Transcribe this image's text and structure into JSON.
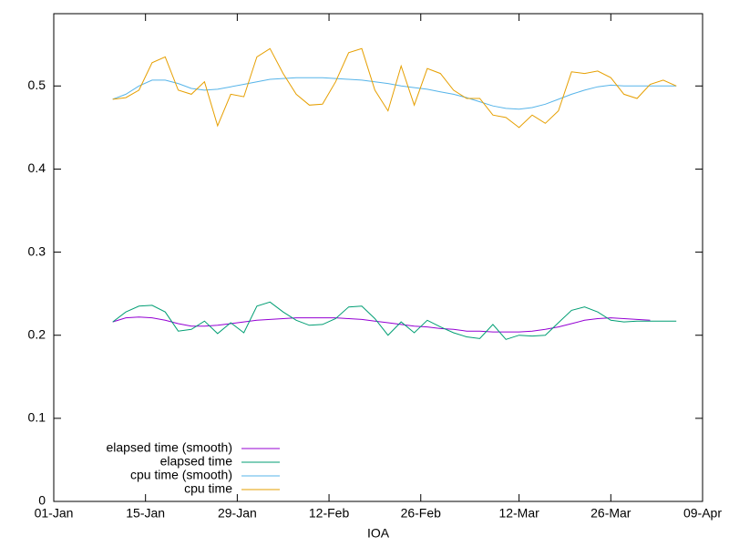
{
  "chart_data": {
    "type": "line",
    "xlabel": "IOA",
    "x": [
      "01-10",
      "01-12",
      "01-14",
      "01-16",
      "01-18",
      "01-20",
      "01-22",
      "01-24",
      "01-26",
      "01-28",
      "01-30",
      "02-01",
      "02-03",
      "02-05",
      "02-07",
      "02-09",
      "02-11",
      "02-13",
      "02-15",
      "02-17",
      "02-19",
      "02-21",
      "02-23",
      "02-25",
      "02-27",
      "02-29",
      "03-02",
      "03-04",
      "03-06",
      "03-08",
      "03-10",
      "03-12",
      "03-14",
      "03-16",
      "03-18",
      "03-20",
      "03-22",
      "03-24",
      "03-26",
      "03-28",
      "03-30",
      "04-01",
      "04-03",
      "04-05"
    ],
    "series": [
      {
        "name": "elapsed time (smooth)",
        "color": "#9400d3",
        "values": [
          0.216,
          0.221,
          0.222,
          0.221,
          0.218,
          0.214,
          0.211,
          0.211,
          0.212,
          0.214,
          0.216,
          0.218,
          0.219,
          0.22,
          0.221,
          0.221,
          0.221,
          0.221,
          0.22,
          0.219,
          0.217,
          0.215,
          0.213,
          0.211,
          0.21,
          0.208,
          0.207,
          0.205,
          0.205,
          0.204,
          0.204,
          0.204,
          0.205,
          0.207,
          0.21,
          0.214,
          0.218,
          0.22,
          0.221,
          0.22,
          0.219,
          0.218,
          null,
          null
        ]
      },
      {
        "name": "elapsed time",
        "color": "#009e73",
        "values": [
          0.216,
          0.228,
          0.235,
          0.236,
          0.228,
          0.205,
          0.207,
          0.217,
          0.202,
          0.215,
          0.203,
          0.235,
          0.24,
          0.228,
          0.218,
          0.212,
          0.213,
          0.22,
          0.234,
          0.235,
          0.22,
          0.2,
          0.216,
          0.203,
          0.218,
          0.21,
          0.203,
          0.198,
          0.196,
          0.213,
          0.195,
          0.2,
          0.199,
          0.2,
          0.215,
          0.23,
          0.234,
          0.228,
          0.218,
          0.216,
          0.217,
          0.217,
          0.217,
          0.217
        ]
      },
      {
        "name": "cpu time (smooth)",
        "color": "#56b4e9",
        "values": [
          0.484,
          0.49,
          0.5,
          0.507,
          0.507,
          0.503,
          0.497,
          0.495,
          0.496,
          0.499,
          0.502,
          0.505,
          0.508,
          0.509,
          0.51,
          0.51,
          0.51,
          0.509,
          0.508,
          0.507,
          0.505,
          0.503,
          0.5,
          0.498,
          0.496,
          0.493,
          0.49,
          0.486,
          0.481,
          0.476,
          0.473,
          0.472,
          0.474,
          0.478,
          0.484,
          0.49,
          0.495,
          0.499,
          0.501,
          0.5,
          0.5,
          0.5,
          0.5,
          0.5
        ]
      },
      {
        "name": "cpu time",
        "color": "#e69f00",
        "values": [
          0.484,
          0.486,
          0.495,
          0.528,
          0.535,
          0.495,
          0.49,
          0.505,
          0.452,
          0.49,
          0.487,
          0.535,
          0.545,
          0.515,
          0.49,
          0.477,
          0.478,
          0.505,
          0.54,
          0.545,
          0.495,
          0.47,
          0.524,
          0.477,
          0.521,
          0.515,
          0.495,
          0.485,
          0.485,
          0.465,
          0.462,
          0.45,
          0.465,
          0.455,
          0.47,
          0.517,
          0.515,
          0.518,
          0.51,
          0.49,
          0.485,
          0.502,
          0.507,
          0.5
        ]
      }
    ],
    "xlim": [
      "01-01",
      "04-09"
    ],
    "xticks": [
      {
        "value": "01-01",
        "label": "01-Jan"
      },
      {
        "value": "01-15",
        "label": "15-Jan"
      },
      {
        "value": "01-29",
        "label": "29-Jan"
      },
      {
        "value": "02-12",
        "label": "12-Feb"
      },
      {
        "value": "02-26",
        "label": "26-Feb"
      },
      {
        "value": "03-12",
        "label": "12-Mar"
      },
      {
        "value": "03-26",
        "label": "26-Mar"
      },
      {
        "value": "04-09",
        "label": "09-Apr"
      }
    ],
    "ylim": [
      0,
      0.587
    ],
    "yticks": [
      0,
      0.1,
      0.2,
      0.3,
      0.4,
      0.5
    ],
    "legend": "lower left"
  }
}
